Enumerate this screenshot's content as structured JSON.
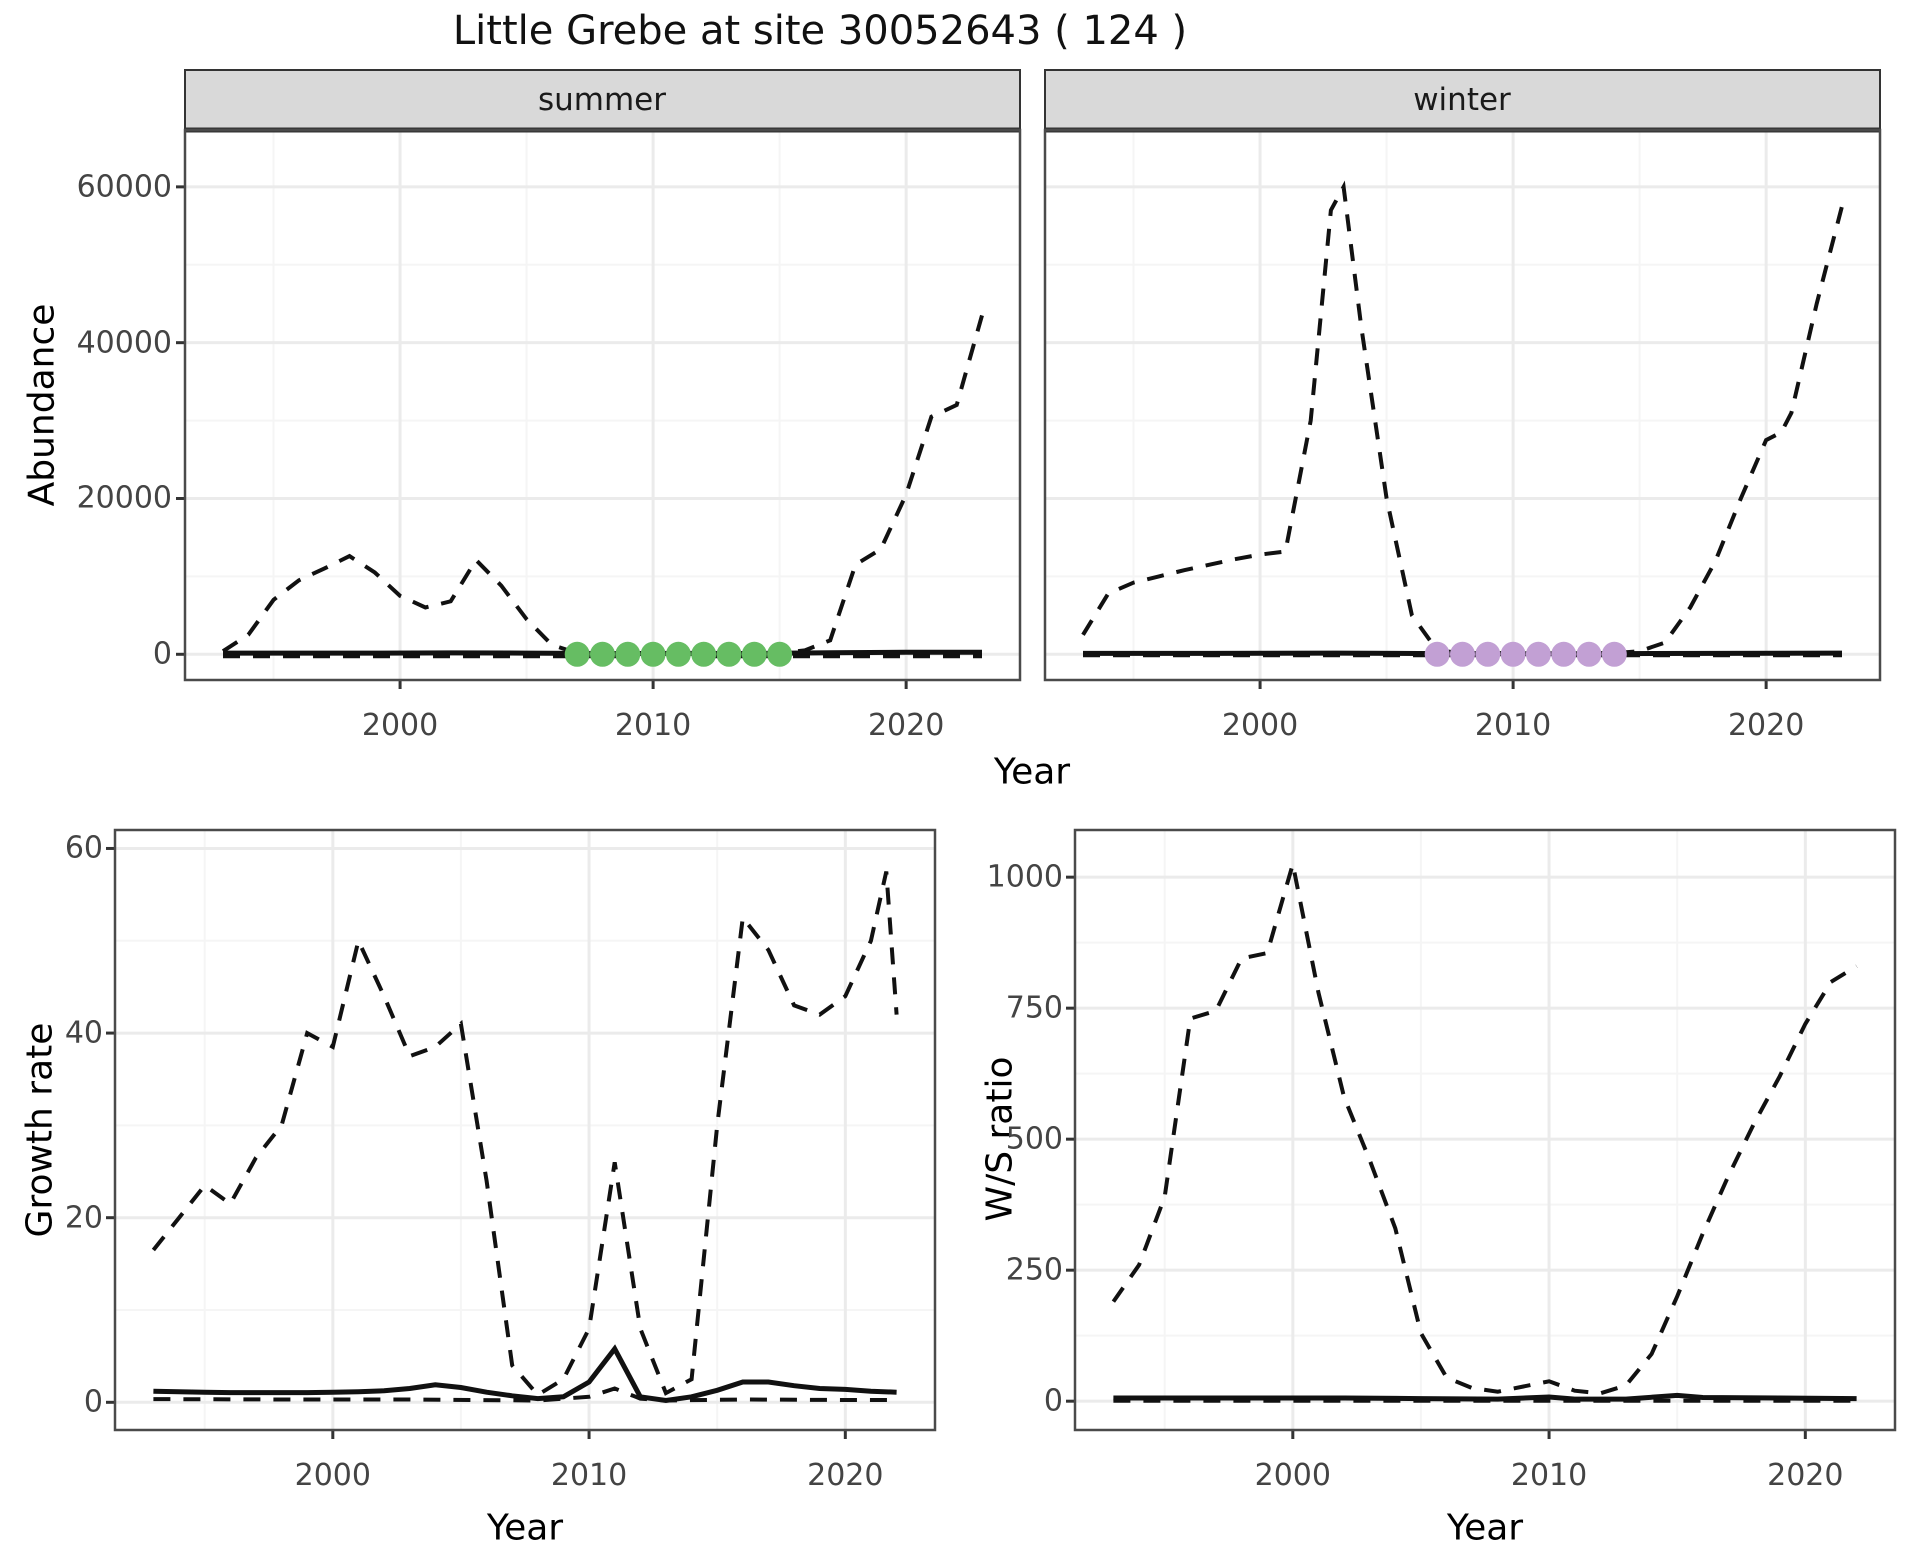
{
  "title": "Little Grebe at site 30052643 ( 124 )",
  "axis_titles": {
    "abundance": "Abundance",
    "growth": "Growth rate",
    "ws": "W/S ratio",
    "year": "Year"
  },
  "facets": {
    "summer": "summer",
    "winter": "winter"
  },
  "colors": {
    "line": "#111111",
    "summer_dot": "#66bd63",
    "winter_dot": "#c2a0d4",
    "grid_major": "#ebebeb",
    "grid_minor": "#f5f5f5",
    "strip_bg": "#d9d9d9",
    "strip_border": "#333333",
    "panel_border": "#4a4a4a",
    "tick_mark": "#333333",
    "tick_text": "#444444"
  },
  "chart_data": [
    {
      "type": "line",
      "panel": "abundance-summer",
      "strip_label": "summer",
      "xlabel": "Year",
      "ylabel": "Abundance",
      "x_ticks": [
        2000,
        2010,
        2020
      ],
      "x_minor": [
        1995,
        2005,
        2015
      ],
      "y_ticks": [
        0,
        20000,
        40000,
        60000
      ],
      "xlim": [
        1991.5,
        2024.5
      ],
      "ylim": [
        -3300,
        67300
      ],
      "grid": "on",
      "legend": "none",
      "series": [
        {
          "name": "modelled-dashed",
          "style": "dashed",
          "points": [
            [
              1993,
              400
            ],
            [
              1994,
              2500
            ],
            [
              1995,
              7000
            ],
            [
              1996,
              9500
            ],
            [
              1997,
              11000
            ],
            [
              1998,
              12600
            ],
            [
              1999,
              10500
            ],
            [
              2000,
              7500
            ],
            [
              2001,
              6000
            ],
            [
              2002,
              6800
            ],
            [
              2003,
              12100
            ],
            [
              2004,
              8800
            ],
            [
              2005,
              4500
            ],
            [
              2006,
              1200
            ],
            [
              2007,
              150
            ],
            [
              2008,
              80
            ],
            [
              2009,
              80
            ],
            [
              2010,
              80
            ],
            [
              2011,
              80
            ],
            [
              2012,
              80
            ],
            [
              2013,
              80
            ],
            [
              2014,
              80
            ],
            [
              2015,
              150
            ],
            [
              2016,
              500
            ],
            [
              2017,
              1800
            ],
            [
              2018,
              11500
            ],
            [
              2019,
              13500
            ],
            [
              2020,
              20500
            ],
            [
              2021,
              30500
            ],
            [
              2022,
              32000
            ],
            [
              2023,
              43500
            ]
          ]
        },
        {
          "name": "observed-solid",
          "style": "solid",
          "points": [
            [
              1993,
              150
            ],
            [
              1996,
              150
            ],
            [
              1999,
              150
            ],
            [
              2002,
              180
            ],
            [
              2005,
              150
            ],
            [
              2008,
              100
            ],
            [
              2011,
              120
            ],
            [
              2014,
              100
            ],
            [
              2017,
              200
            ],
            [
              2020,
              250
            ],
            [
              2023,
              250
            ]
          ]
        },
        {
          "name": "lower-dashed",
          "style": "dashed",
          "points": [
            [
              1993,
              -250
            ],
            [
              2023,
              -250
            ]
          ]
        }
      ],
      "dots": {
        "name": "zero-count-years",
        "color_key": "summer_dot",
        "value": 0,
        "years": [
          2007,
          2008,
          2009,
          2010,
          2011,
          2012,
          2013,
          2014,
          2015
        ]
      }
    },
    {
      "type": "line",
      "panel": "abundance-winter",
      "strip_label": "winter",
      "xlabel": "Year",
      "ylabel": "Abundance",
      "x_ticks": [
        2000,
        2010,
        2020
      ],
      "x_minor": [
        1995,
        2005,
        2015
      ],
      "y_ticks": [
        0,
        20000,
        40000,
        60000
      ],
      "xlim": [
        1991.5,
        2024.5
      ],
      "ylim": [
        -3300,
        67300
      ],
      "grid": "on",
      "legend": "none",
      "series": [
        {
          "name": "modelled-dashed",
          "style": "dashed",
          "points": [
            [
              1993,
              2500
            ],
            [
              1994,
              7800
            ],
            [
              1995,
              9200
            ],
            [
              1996,
              10000
            ],
            [
              1997,
              10800
            ],
            [
              1998,
              11500
            ],
            [
              1999,
              12200
            ],
            [
              2000,
              12800
            ],
            [
              2001,
              13200
            ],
            [
              2002,
              30000
            ],
            [
              2002.8,
              57000
            ],
            [
              2003.3,
              60000
            ],
            [
              2004,
              42000
            ],
            [
              2005,
              20000
            ],
            [
              2006,
              5000
            ],
            [
              2007,
              500
            ],
            [
              2008,
              150
            ],
            [
              2009,
              150
            ],
            [
              2010,
              150
            ],
            [
              2011,
              150
            ],
            [
              2012,
              150
            ],
            [
              2013,
              150
            ],
            [
              2014,
              150
            ],
            [
              2015,
              400
            ],
            [
              2016,
              1500
            ],
            [
              2017,
              6000
            ],
            [
              2018,
              12000
            ],
            [
              2019,
              20000
            ],
            [
              2020,
              27500
            ],
            [
              2020.6,
              28500
            ],
            [
              2021,
              31000
            ],
            [
              2022,
              45000
            ],
            [
              2023,
              57500
            ]
          ]
        },
        {
          "name": "observed-solid",
          "style": "solid",
          "points": [
            [
              1993,
              120
            ],
            [
              1998,
              120
            ],
            [
              2003,
              150
            ],
            [
              2008,
              80
            ],
            [
              2013,
              80
            ],
            [
              2018,
              120
            ],
            [
              2023,
              150
            ]
          ]
        },
        {
          "name": "lower-dashed",
          "style": "dashed",
          "points": [
            [
              1993,
              -120
            ],
            [
              2023,
              -120
            ]
          ]
        }
      ],
      "dots": {
        "name": "zero-count-years",
        "color_key": "winter_dot",
        "value": 0,
        "years": [
          2007,
          2008,
          2009,
          2010,
          2011,
          2012,
          2013,
          2014
        ]
      }
    },
    {
      "type": "line",
      "panel": "growth-rate",
      "strip_label": "",
      "xlabel": "Year",
      "ylabel": "Growth rate",
      "x_ticks": [
        2000,
        2010,
        2020
      ],
      "x_minor": [
        1995,
        2005,
        2015
      ],
      "y_ticks": [
        0,
        20,
        40,
        60
      ],
      "xlim": [
        1991.5,
        2023.5
      ],
      "ylim": [
        -3,
        62
      ],
      "grid": "on",
      "legend": "none",
      "series": [
        {
          "name": "upper-dashed",
          "style": "dashed",
          "points": [
            [
              1993,
              16.5
            ],
            [
              1994,
              20
            ],
            [
              1995,
              23.5
            ],
            [
              1996,
              21.5
            ],
            [
              1997,
              26.5
            ],
            [
              1998,
              30
            ],
            [
              1999,
              40
            ],
            [
              2000,
              38.5
            ],
            [
              2001,
              50
            ],
            [
              2002,
              44
            ],
            [
              2003,
              37.5
            ],
            [
              2004,
              38.5
            ],
            [
              2005,
              41
            ],
            [
              2006,
              24
            ],
            [
              2007,
              4
            ],
            [
              2008,
              0.8
            ],
            [
              2009,
              2.5
            ],
            [
              2010,
              8
            ],
            [
              2011,
              26
            ],
            [
              2012,
              8
            ],
            [
              2013,
              1
            ],
            [
              2014,
              2.5
            ],
            [
              2015,
              30
            ],
            [
              2016,
              52.5
            ],
            [
              2017,
              49
            ],
            [
              2018,
              43
            ],
            [
              2019,
              42
            ],
            [
              2020,
              44
            ],
            [
              2021,
              50
            ],
            [
              2021.6,
              57.5
            ],
            [
              2022,
              42
            ]
          ]
        },
        {
          "name": "observed-solid",
          "style": "solid",
          "points": [
            [
              1993,
              1.2
            ],
            [
              1994,
              1.15
            ],
            [
              1995,
              1.1
            ],
            [
              1996,
              1.05
            ],
            [
              1997,
              1.05
            ],
            [
              1998,
              1.05
            ],
            [
              1999,
              1.05
            ],
            [
              2000,
              1.1
            ],
            [
              2001,
              1.15
            ],
            [
              2002,
              1.25
            ],
            [
              2003,
              1.5
            ],
            [
              2004,
              1.9
            ],
            [
              2005,
              1.6
            ],
            [
              2006,
              1.1
            ],
            [
              2007,
              0.7
            ],
            [
              2008,
              0.4
            ],
            [
              2009,
              0.6
            ],
            [
              2010,
              2.2
            ],
            [
              2011,
              5.8
            ],
            [
              2012,
              0.6
            ],
            [
              2013,
              0.2
            ],
            [
              2014,
              0.6
            ],
            [
              2015,
              1.3
            ],
            [
              2016,
              2.2
            ],
            [
              2017,
              2.2
            ],
            [
              2018,
              1.8
            ],
            [
              2019,
              1.5
            ],
            [
              2020,
              1.4
            ],
            [
              2021,
              1.2
            ],
            [
              2022,
              1.1
            ]
          ]
        },
        {
          "name": "lower-dashed",
          "style": "dashed",
          "points": [
            [
              1993,
              0.35
            ],
            [
              1998,
              0.3
            ],
            [
              2003,
              0.3
            ],
            [
              2008,
              0.2
            ],
            [
              2010,
              0.6
            ],
            [
              2011,
              1.5
            ],
            [
              2012,
              0.4
            ],
            [
              2013,
              0.2
            ],
            [
              2016,
              0.3
            ],
            [
              2020,
              0.25
            ],
            [
              2022,
              0.25
            ]
          ]
        }
      ],
      "dots": null
    },
    {
      "type": "line",
      "panel": "ws-ratio",
      "strip_label": "",
      "xlabel": "Year",
      "ylabel": "W/S ratio",
      "x_ticks": [
        2000,
        2010,
        2020
      ],
      "x_minor": [
        1995,
        2005,
        2015
      ],
      "y_ticks": [
        0,
        250,
        500,
        750,
        1000
      ],
      "xlim": [
        1991.5,
        2023.5
      ],
      "ylim": [
        -55,
        1090
      ],
      "grid": "on",
      "legend": "none",
      "series": [
        {
          "name": "ratio-dashed",
          "style": "dashed",
          "points": [
            [
              1993,
              190
            ],
            [
              1994,
              260
            ],
            [
              1995,
              390
            ],
            [
              1996,
              730
            ],
            [
              1997,
              745
            ],
            [
              1998,
              845
            ],
            [
              1999,
              855
            ],
            [
              2000,
              1025
            ],
            [
              2001,
              780
            ],
            [
              2002,
              580
            ],
            [
              2003,
              460
            ],
            [
              2004,
              330
            ],
            [
              2005,
              130
            ],
            [
              2006,
              45
            ],
            [
              2007,
              25
            ],
            [
              2008,
              18
            ],
            [
              2009,
              28
            ],
            [
              2010,
              38
            ],
            [
              2011,
              20
            ],
            [
              2012,
              15
            ],
            [
              2013,
              30
            ],
            [
              2014,
              90
            ],
            [
              2015,
              200
            ],
            [
              2016,
              320
            ],
            [
              2017,
              430
            ],
            [
              2018,
              530
            ],
            [
              2019,
              620
            ],
            [
              2020,
              720
            ],
            [
              2021,
              800
            ],
            [
              2022,
              830
            ]
          ]
        },
        {
          "name": "observed-solid",
          "style": "solid",
          "points": [
            [
              1993,
              6
            ],
            [
              1996,
              6
            ],
            [
              1999,
              6
            ],
            [
              2002,
              6
            ],
            [
              2005,
              5
            ],
            [
              2008,
              4
            ],
            [
              2010,
              8
            ],
            [
              2011,
              4
            ],
            [
              2013,
              4
            ],
            [
              2015,
              11
            ],
            [
              2016,
              7
            ],
            [
              2019,
              6
            ],
            [
              2022,
              5
            ]
          ]
        },
        {
          "name": "lower-dashed",
          "style": "dashed",
          "points": [
            [
              1993,
              1
            ],
            [
              2022,
              1
            ]
          ]
        }
      ],
      "dots": null
    }
  ]
}
